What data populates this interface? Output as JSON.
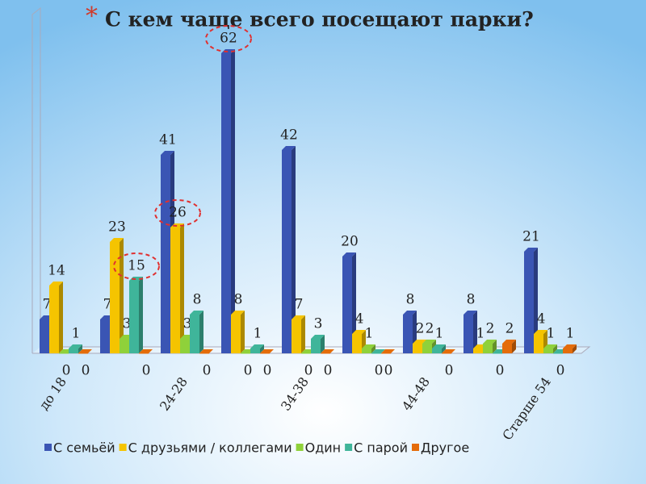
{
  "chart_data": {
    "type": "bar",
    "bullet": "*",
    "title": "С кем чаще всего посещают парки?",
    "categories": [
      "до 18",
      null,
      "24-28",
      null,
      "34-38",
      null,
      "44-48",
      null,
      "Старше 54"
    ],
    "series": [
      {
        "name": "С семьёй",
        "color": "#3a55b4",
        "values": [
          7,
          7,
          41,
          62,
          42,
          20,
          8,
          8,
          21
        ]
      },
      {
        "name": "С друзьями / коллегами",
        "color": "#f5c400",
        "values": [
          14,
          23,
          26,
          8,
          7,
          4,
          2,
          1,
          4
        ]
      },
      {
        "name": "Один",
        "color": "#8fd13a",
        "values": [
          0,
          3,
          3,
          0,
          0,
          1,
          2,
          2,
          1
        ]
      },
      {
        "name": "С парой",
        "color": "#3fb59a",
        "values": [
          1,
          15,
          8,
          1,
          3,
          0,
          1,
          0,
          0
        ]
      },
      {
        "name": "Другое",
        "color": "#e46c0a",
        "values": [
          0,
          0,
          0,
          0,
          0,
          0,
          0,
          2,
          1
        ]
      }
    ],
    "ylim": [
      0,
      70
    ],
    "legend": "bottom"
  }
}
